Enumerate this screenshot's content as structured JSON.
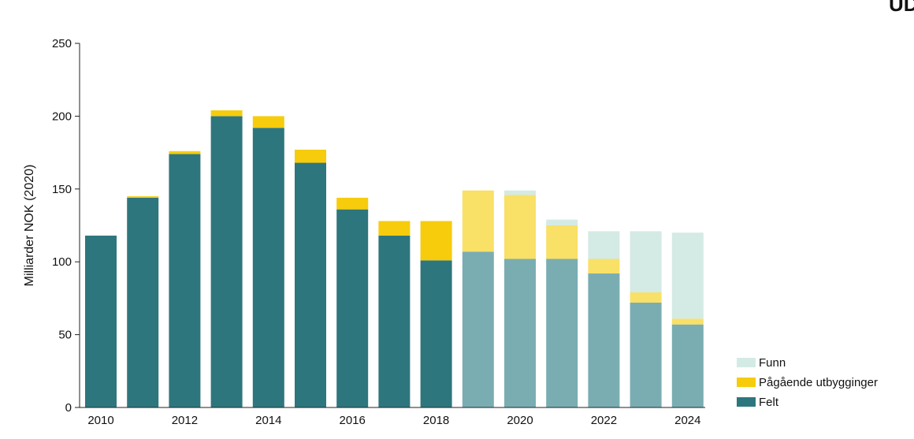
{
  "logo": {
    "text": "UD"
  },
  "colors": {
    "felt_actual": "#2e767e",
    "felt_forecast": "#7aadb2",
    "pagaende_actual": "#f6cc0c",
    "pagaende_forecast": "#f9e066",
    "funn": "#d4eae5",
    "axis": "#222222"
  },
  "chart_data": {
    "type": "bar",
    "stacked": true,
    "ylabel": "Milliarder NOK (2020)",
    "xlabel": "",
    "ylim": [
      0,
      250
    ],
    "yticks": [
      0,
      50,
      100,
      150,
      200,
      250
    ],
    "categories": [
      "2010",
      "2011",
      "2012",
      "2013",
      "2014",
      "2015",
      "2016",
      "2017",
      "2018",
      "2019",
      "2020",
      "2021",
      "2022",
      "2023",
      "2024"
    ],
    "x_tick_labels": [
      "2010",
      "",
      "2012",
      "",
      "2014",
      "",
      "2016",
      "",
      "2018",
      "",
      "2020",
      "",
      "2022",
      "",
      "2024"
    ],
    "forecast_from": "2019",
    "series": [
      {
        "name": "Felt",
        "values": [
          118,
          144,
          174,
          200,
          192,
          168,
          136,
          118,
          101,
          107,
          102,
          102,
          92,
          72,
          57
        ]
      },
      {
        "name": "Pågående utbygginger",
        "values": [
          0,
          1,
          2,
          4,
          8,
          9,
          8,
          10,
          27,
          42,
          44,
          23,
          10,
          7,
          4
        ]
      },
      {
        "name": "Funn",
        "values": [
          0,
          0,
          0,
          0,
          0,
          0,
          0,
          0,
          0,
          0,
          3,
          4,
          19,
          42,
          59
        ]
      }
    ],
    "legend": {
      "position": "bottom-right",
      "entries": [
        "Funn",
        "Pågående utbygginger",
        "Felt"
      ]
    },
    "grid": false
  }
}
